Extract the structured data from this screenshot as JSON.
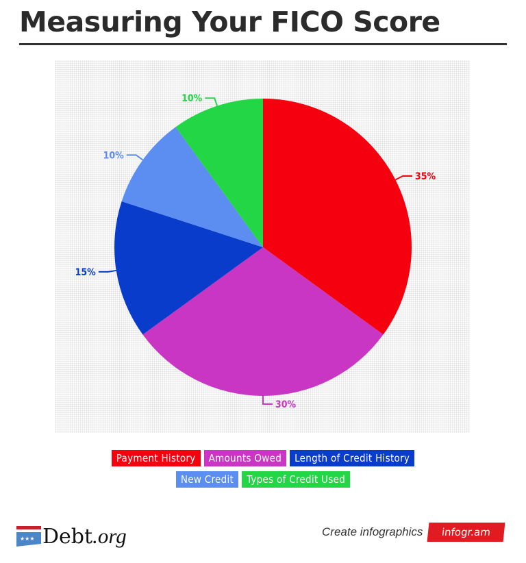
{
  "title": "Measuring Your FICO Score",
  "chart_data": {
    "type": "pie",
    "title": "Measuring Your FICO Score",
    "start": "top",
    "direction": "clockwise",
    "slices": [
      {
        "name": "Payment History",
        "value": 35,
        "label": "35%",
        "color": "#f5000f"
      },
      {
        "name": "Amounts Owed",
        "value": 30,
        "label": "30%",
        "color": "#c936c3"
      },
      {
        "name": "Length of Credit History",
        "value": 15,
        "label": "15%",
        "color": "#0a3ccc"
      },
      {
        "name": "New Credit",
        "value": 10,
        "label": "10%",
        "color": "#5b8ef0"
      },
      {
        "name": "Types of Credit Used",
        "value": 10,
        "label": "10%",
        "color": "#22d645"
      }
    ],
    "legend": "bottom"
  },
  "footer": {
    "logo": "Debt",
    "logo_suffix": ".org",
    "credit": "Create infographics",
    "badge": "infogr.am"
  }
}
